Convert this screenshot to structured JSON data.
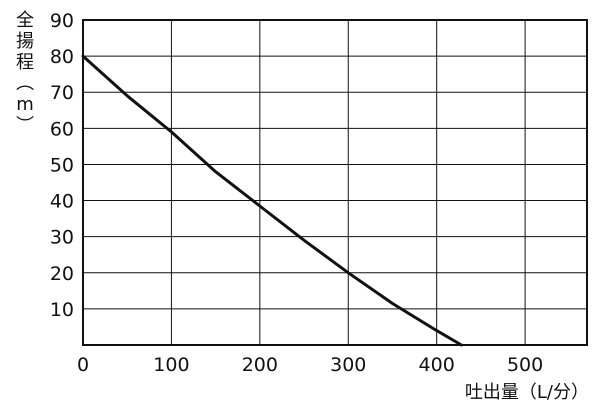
{
  "chart_data": {
    "type": "line",
    "xlabel": "吐出量（L/分）",
    "ylabel": "全揚程（m）",
    "xlim": [
      0,
      570
    ],
    "ylim": [
      0,
      90
    ],
    "x_ticks": [
      "0",
      "100",
      "200",
      "300",
      "400",
      "500"
    ],
    "y_ticks": [
      "10",
      "20",
      "30",
      "40",
      "50",
      "60",
      "70",
      "80",
      "90"
    ],
    "grid": true,
    "series": [
      {
        "x": [
          0,
          50,
          100,
          150,
          200,
          250,
          300,
          350,
          400,
          428
        ],
        "y": [
          80,
          69,
          59,
          48,
          38.5,
          29,
          20,
          11.5,
          4,
          0
        ]
      }
    ]
  }
}
